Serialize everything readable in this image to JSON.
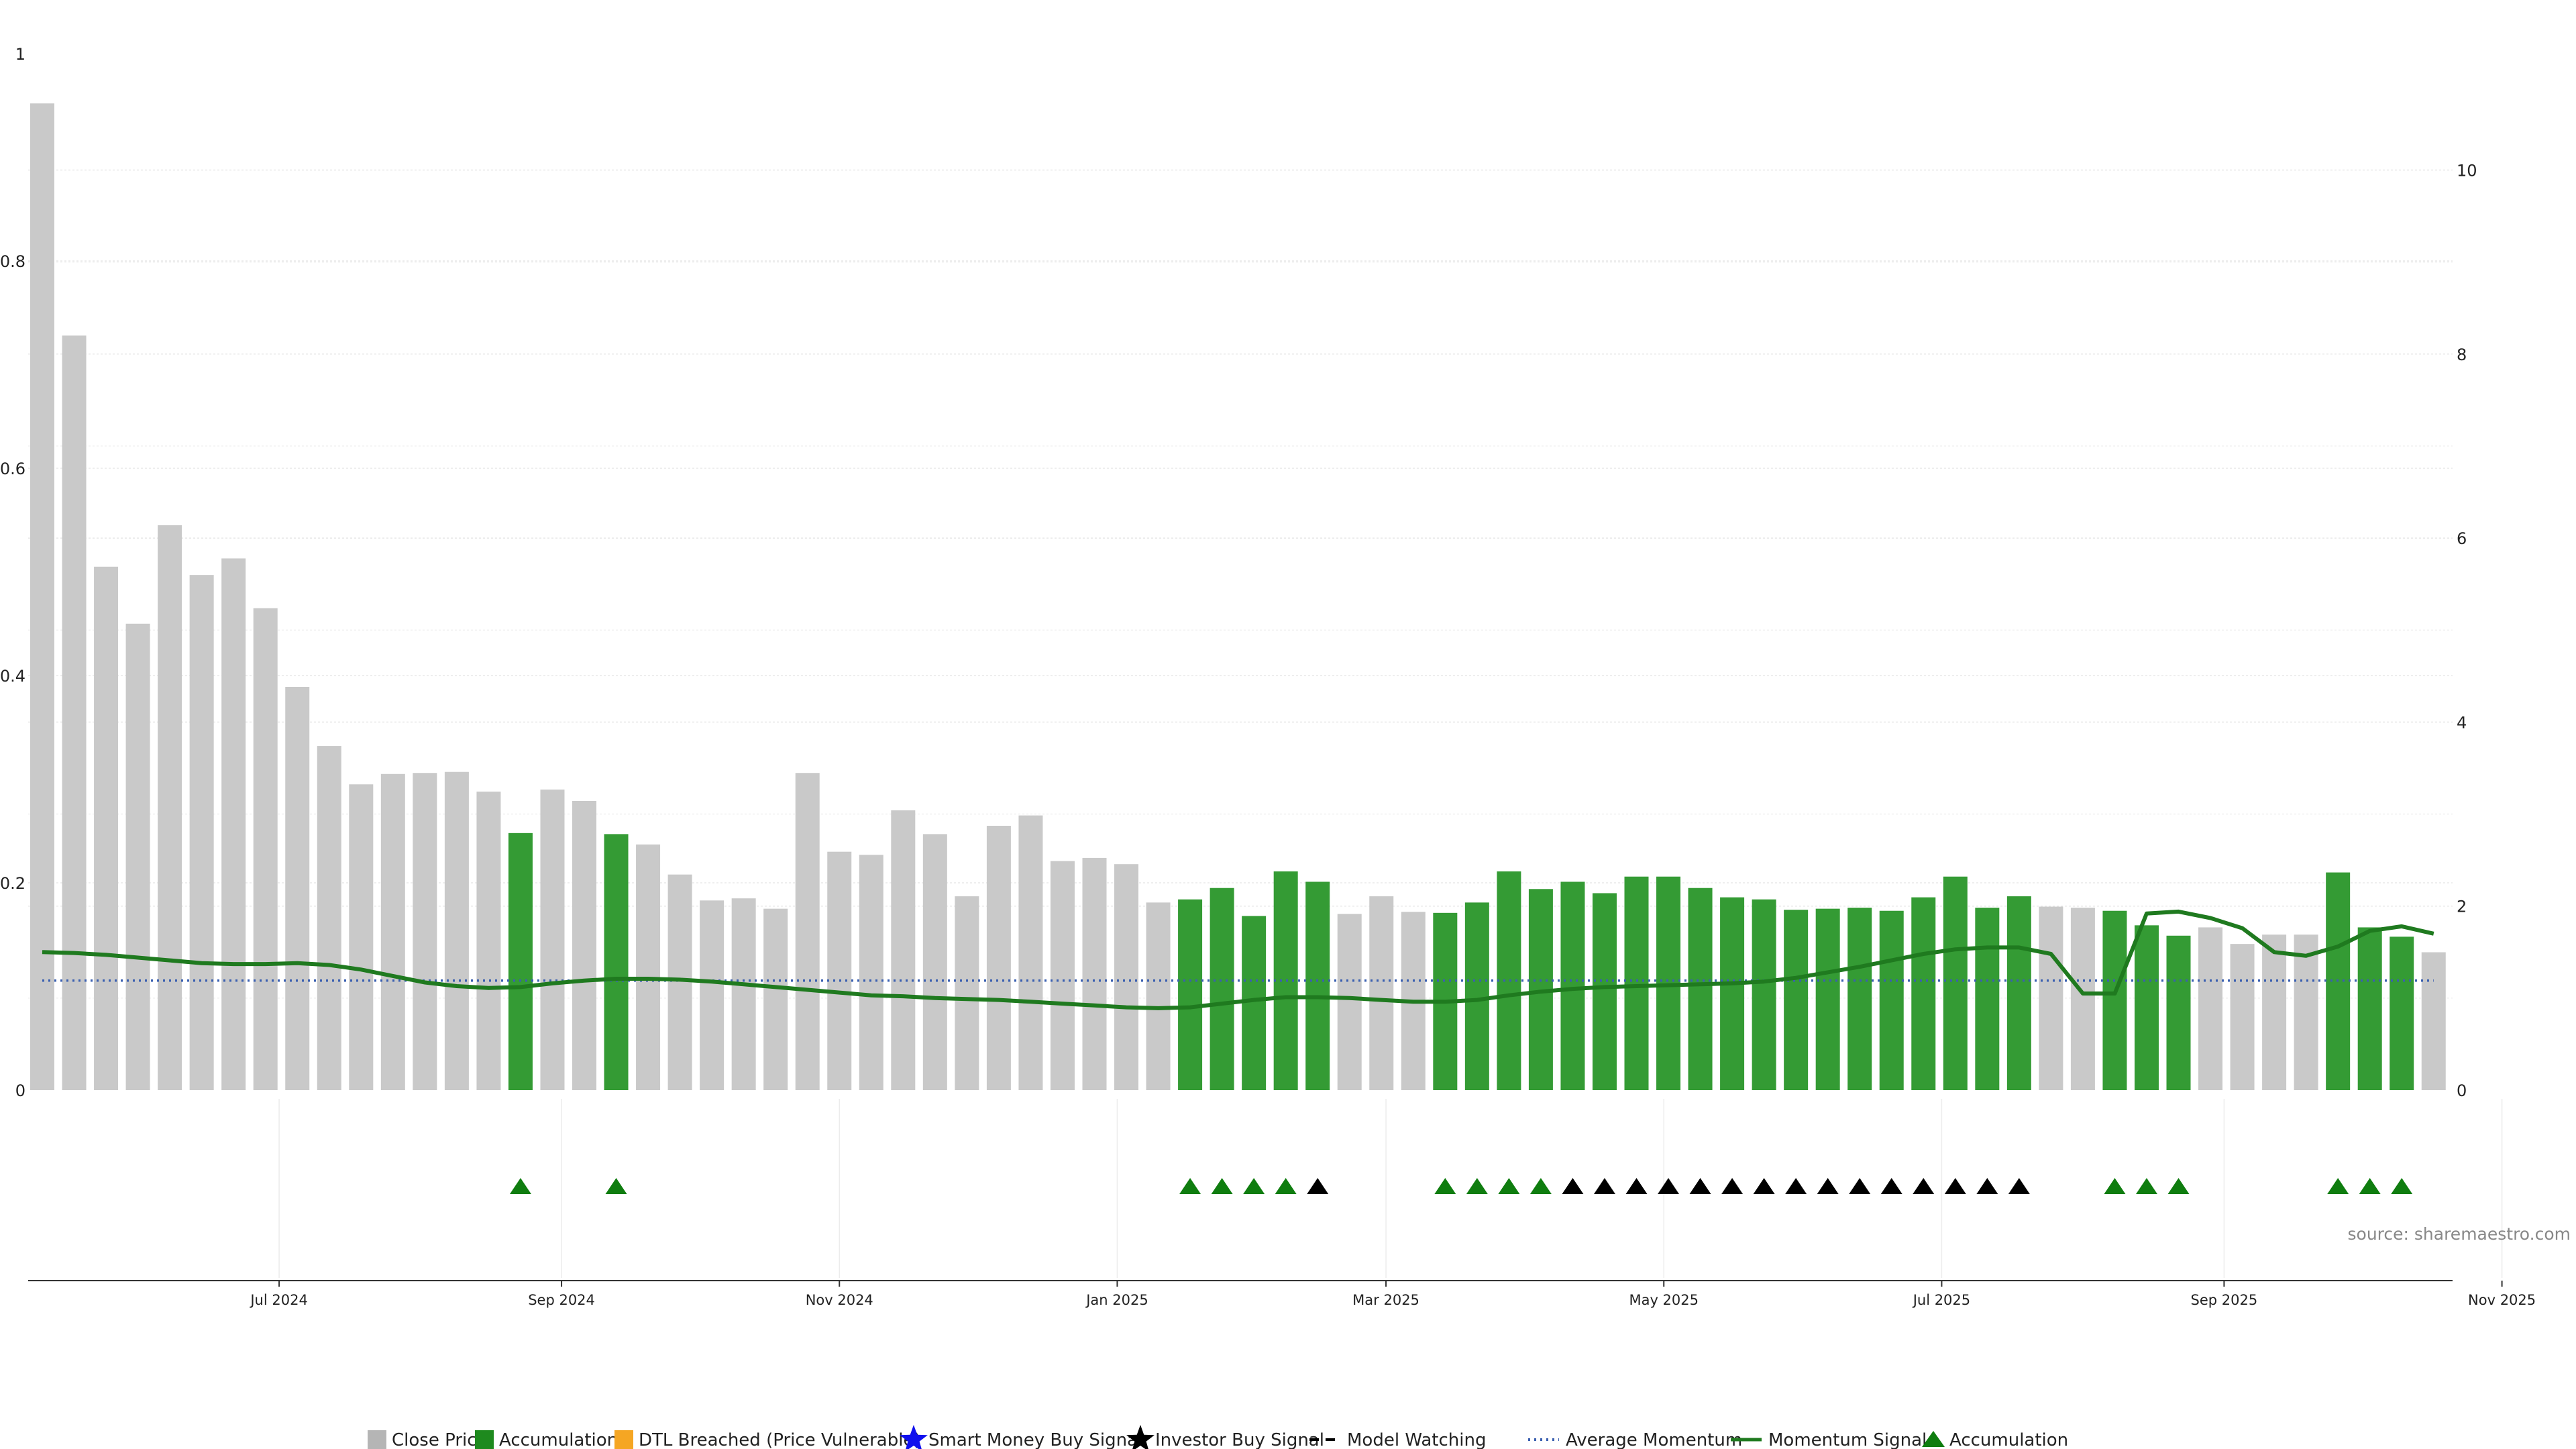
{
  "source": "source: sharemaestro.com",
  "colors": {
    "close": "#c9c9c9",
    "accumulation": "#349b34",
    "momentum": "#1f7a1f",
    "average": "#3a5fb0",
    "triangle_green": "#0f7d0f",
    "triangle_black": "#000000",
    "dtl": "#f5a623",
    "smart_money": "#1010ee"
  },
  "legend": [
    {
      "label": "Close Price",
      "icon": "gray-square-icon"
    },
    {
      "label": "Accumulation",
      "icon": "green-square-icon"
    },
    {
      "label": "DTL Breached (Price Vulnerable)",
      "icon": "orange-square-icon"
    },
    {
      "label": "Smart Money Buy Signal",
      "icon": "blue-star-icon"
    },
    {
      "label": "Investor Buy Signal",
      "icon": "black-star-icon"
    },
    {
      "label": "Model Watching",
      "icon": "dashed-line-icon"
    },
    {
      "label": "Average Momentum",
      "icon": "dotted-line-icon"
    },
    {
      "label": "Momentum Signal",
      "icon": "solid-line-icon"
    },
    {
      "label": "Accumulation",
      "icon": "green-triangle-icon"
    }
  ],
  "chart_data": {
    "type": "bar",
    "bar_date_start": "2024-05-10",
    "bar_interval_days": 7,
    "y_left": {
      "ticks": [
        "0",
        "0.2",
        "0.4",
        "0.6",
        "0.8",
        "1"
      ],
      "range": [
        0,
        1
      ]
    },
    "y_right": {
      "ticks": [
        "0",
        "2",
        "4",
        "6",
        "8",
        "10"
      ],
      "range": [
        0,
        10.9
      ]
    },
    "x_ticks": [
      {
        "label": "Jul 2024",
        "date": "2024-07-01"
      },
      {
        "label": "Sep 2024",
        "date": "2024-09-01"
      },
      {
        "label": "Nov 2024",
        "date": "2024-11-01"
      },
      {
        "label": "Jan 2025",
        "date": "2025-01-01"
      },
      {
        "label": "Mar 2025",
        "date": "2025-03-01"
      },
      {
        "label": "May 2025",
        "date": "2025-05-01"
      },
      {
        "label": "Jul 2025",
        "date": "2025-07-01"
      },
      {
        "label": "Sep 2025",
        "date": "2025-09-01"
      },
      {
        "label": "Nov 2025",
        "date": "2025-11-01"
      }
    ],
    "close_price": [
      0.952,
      0.728,
      0.505,
      0.45,
      0.545,
      0.497,
      0.513,
      0.465,
      0.389,
      0.332,
      0.295,
      0.305,
      0.306,
      0.307,
      0.288,
      0.248,
      0.29,
      0.279,
      0.247,
      0.237,
      0.208,
      0.183,
      0.185,
      0.175,
      0.306,
      0.23,
      0.227,
      0.27,
      0.247,
      0.187,
      0.255,
      0.265,
      0.221,
      0.224,
      0.218,
      0.181,
      0.184,
      0.195,
      0.168,
      0.211,
      0.201,
      0.17,
      0.187,
      0.172,
      0.171,
      0.181,
      0.211,
      0.194,
      0.201,
      0.19,
      0.206,
      0.206,
      0.195,
      0.186,
      0.184,
      0.174,
      0.175,
      0.176,
      0.173,
      0.186,
      0.206,
      0.176,
      0.187,
      0.177,
      0.176,
      0.173,
      0.159,
      0.149,
      0.157,
      0.141,
      0.15,
      0.15,
      0.21,
      0.157,
      0.148,
      0.133
    ],
    "accumulation": [
      0,
      0,
      0,
      0,
      0,
      0,
      0,
      0,
      0,
      0,
      0,
      0,
      0,
      0,
      0,
      1,
      0,
      0,
      1,
      0,
      0,
      0,
      0,
      0,
      0,
      0,
      0,
      0,
      0,
      0,
      0,
      0,
      0,
      0,
      0,
      0,
      1,
      1,
      1,
      1,
      1,
      0,
      0,
      0,
      1,
      1,
      1,
      1,
      1,
      1,
      1,
      1,
      1,
      1,
      1,
      1,
      1,
      1,
      1,
      1,
      1,
      1,
      1,
      0,
      0,
      1,
      1,
      1,
      0,
      0,
      0,
      0,
      1,
      1,
      1,
      0
    ],
    "signal_markers": [
      0,
      0,
      0,
      0,
      0,
      0,
      0,
      0,
      0,
      0,
      0,
      0,
      0,
      0,
      0,
      1,
      0,
      0,
      1,
      0,
      0,
      0,
      0,
      0,
      0,
      0,
      0,
      0,
      0,
      0,
      0,
      0,
      0,
      0,
      0,
      0,
      1,
      1,
      1,
      1,
      2,
      0,
      0,
      0,
      1,
      1,
      1,
      1,
      2,
      2,
      2,
      2,
      2,
      2,
      2,
      2,
      2,
      2,
      2,
      2,
      2,
      2,
      2,
      0,
      0,
      1,
      1,
      1,
      0,
      0,
      0,
      0,
      1,
      1,
      1,
      0
    ],
    "average_momentum": 1.19,
    "momentum_signal": [
      1.5,
      1.49,
      1.47,
      1.44,
      1.41,
      1.38,
      1.37,
      1.37,
      1.38,
      1.36,
      1.31,
      1.24,
      1.17,
      1.13,
      1.11,
      1.12,
      1.16,
      1.19,
      1.21,
      1.21,
      1.2,
      1.18,
      1.15,
      1.12,
      1.09,
      1.06,
      1.03,
      1.02,
      1.0,
      0.99,
      0.98,
      0.96,
      0.94,
      0.92,
      0.9,
      0.89,
      0.9,
      0.94,
      0.98,
      1.01,
      1.01,
      1.0,
      0.98,
      0.96,
      0.96,
      0.98,
      1.03,
      1.07,
      1.1,
      1.12,
      1.13,
      1.14,
      1.15,
      1.16,
      1.18,
      1.22,
      1.28,
      1.34,
      1.41,
      1.48,
      1.53,
      1.55,
      1.55,
      1.48,
      1.05,
      1.05,
      1.92,
      1.94,
      1.87,
      1.76,
      1.5,
      1.46,
      1.56,
      1.73,
      1.78,
      1.7
    ]
  }
}
